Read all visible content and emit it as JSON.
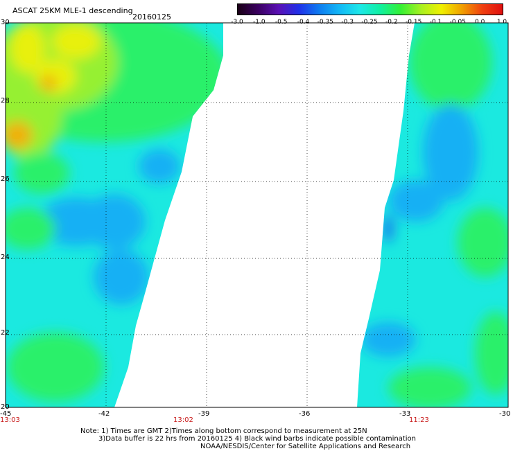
{
  "header": {
    "title": "ASCAT 25KM MLE-1 descending",
    "date": "20160125"
  },
  "colorbar": {
    "labels": [
      "-3.0",
      "-1.0",
      "-0.5",
      "-0.4",
      "-0.35",
      "-0.3",
      "-0.25",
      "-0.2",
      "-0.15",
      "-0.1",
      "-0.05",
      "0.0",
      "1.0"
    ],
    "colors": [
      "#1a0016",
      "#3a0060",
      "#5a10b4",
      "#2030e8",
      "#0e7cf0",
      "#12b8f6",
      "#1de8e8",
      "#10f0a0",
      "#34f034",
      "#a8f020",
      "#f0f000",
      "#f0a000",
      "#f04010",
      "#e01010"
    ]
  },
  "map": {
    "lat_labels": [
      "30",
      "28",
      "26",
      "24",
      "22",
      "20"
    ],
    "lon_labels": [
      "-45",
      "-42",
      "-39",
      "-36",
      "-33",
      "-30"
    ],
    "time_labels": [
      "13:03",
      "13:02",
      "11:23"
    ],
    "lon_range": [
      -45,
      -30
    ],
    "lat_range": [
      20,
      30
    ],
    "swath_colors": {
      "base": "#1be9e0",
      "green": "#2cf06a",
      "yellow_green": "#96f030",
      "yellow": "#e8f010",
      "orange": "#f0b010",
      "blue": "#18b0f4",
      "deep_blue": "#1278ee"
    }
  },
  "footer": {
    "line1": "Note: 1) Times are GMT 2)Times along bottom correspond to measurement at 25N",
    "line2": "3)Data buffer is 22 hrs from 20160125 4) Black wind barbs indicate possible contamination",
    "line3": "NOAA/NESDIS/Center for Satellite Applications and Research"
  }
}
